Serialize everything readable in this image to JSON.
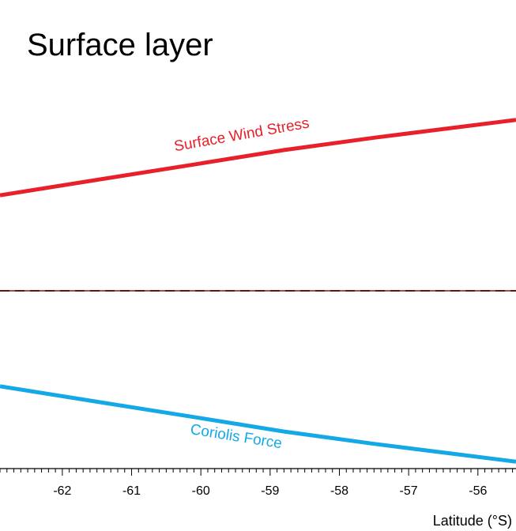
{
  "chart_data": {
    "type": "line",
    "title": "Surface layer",
    "xlabel": "Latitude (°S)",
    "ylabel": "",
    "xlim": [
      -62.9,
      -55.45
    ],
    "ylim": [
      -1.0,
      1.0
    ],
    "x_ticks": [
      -62,
      -61,
      -60,
      -59,
      -58,
      -57,
      -56
    ],
    "x_tick_labels": [
      "-62",
      "-61",
      "-60",
      "-59",
      "-58",
      "-57",
      "-56"
    ],
    "grid": false,
    "legend": "none",
    "series": [
      {
        "name": "Surface Wind Stress",
        "color": "#e8202a",
        "x": [
          -62.9,
          -61.5,
          -60.0,
          -58.8,
          -57.5,
          -56.2,
          -55.45
        ],
        "y": [
          0.465,
          0.54,
          0.62,
          0.685,
          0.745,
          0.8,
          0.832
        ]
      },
      {
        "name": "Coriolis Force",
        "color": "#14a9e6",
        "x": [
          -62.9,
          -61.5,
          -60.0,
          -58.8,
          -57.5,
          -56.2,
          -55.45
        ],
        "y": [
          -0.465,
          -0.54,
          -0.62,
          -0.685,
          -0.745,
          -0.8,
          -0.832
        ]
      },
      {
        "name": "",
        "color": "#000000",
        "style": "dashed",
        "x": [
          -62.9,
          -55.45
        ],
        "y": [
          0.0,
          0.0
        ]
      },
      {
        "name": "",
        "color": "#7a1a1a",
        "x": [
          -62.9,
          -55.45
        ],
        "y": [
          0.0,
          0.0
        ]
      }
    ],
    "annotations": [
      "Surface Wind Stress",
      "Coriolis Force"
    ]
  }
}
